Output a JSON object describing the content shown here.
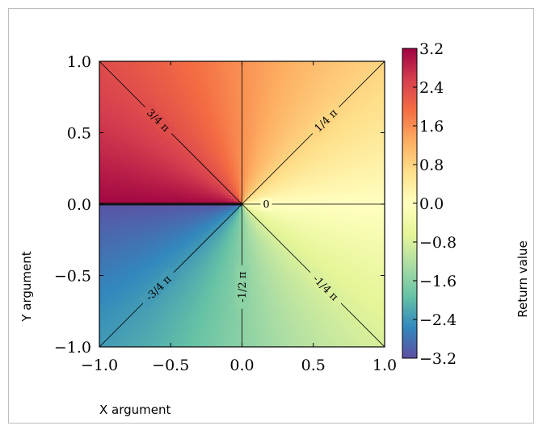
{
  "chart_data": {
    "type": "heatmap",
    "function": "arctan2(y, x)",
    "xlim": [
      -1.0,
      1.0
    ],
    "ylim": [
      -1.0,
      1.0
    ],
    "xlabel": "X argument",
    "ylabel": "Y argument",
    "colorbar_label": "Return value",
    "colormap": "Spectral (reversed)",
    "colormap_stops": [
      "#5e4fa2",
      "#3288bd",
      "#66c2a5",
      "#abdda4",
      "#e6f598",
      "#ffffbf",
      "#fee08b",
      "#fdae61",
      "#f46d43",
      "#d53e4f",
      "#9e0142"
    ],
    "color_range": [
      -3.2,
      3.2
    ],
    "x_ticks": [
      "−1.0",
      "−0.5",
      "0.0",
      "0.5",
      "1.0"
    ],
    "x_tick_values": [
      -1.0,
      -0.5,
      0.0,
      0.5,
      1.0
    ],
    "y_ticks": [
      "−1.0",
      "−0.5",
      "0.0",
      "0.5",
      "1.0"
    ],
    "y_tick_values": [
      -1.0,
      -0.5,
      0.0,
      0.5,
      1.0
    ],
    "colorbar_ticks": [
      "3.2",
      "2.4",
      "1.6",
      "0.8",
      "0.0",
      "−0.8",
      "−1.6",
      "−2.4",
      "−3.2"
    ],
    "colorbar_tick_values": [
      3.2,
      2.4,
      1.6,
      0.8,
      0.0,
      -0.8,
      -1.6,
      -2.4,
      -3.2
    ],
    "contour_levels": [
      {
        "label": "3/4 π",
        "value": 2.356
      },
      {
        "label": "1/4 π",
        "value": 0.785
      },
      {
        "label": "0",
        "value": 0.0
      },
      {
        "label": "-1/4 π",
        "value": -0.785
      },
      {
        "label": "-1/2 π",
        "value": -1.571
      },
      {
        "label": "-3/4 π",
        "value": -2.356
      }
    ],
    "grid": true
  }
}
